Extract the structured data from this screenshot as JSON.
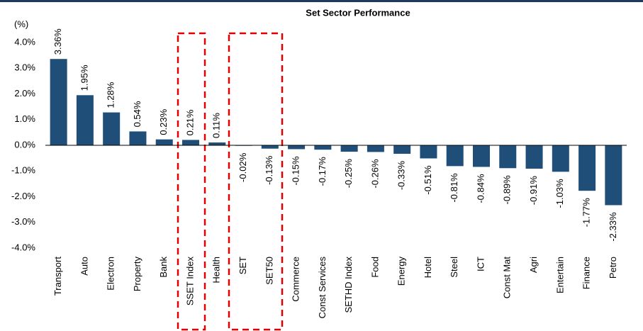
{
  "chart_data": {
    "type": "bar",
    "title": "Set Sector Performance",
    "y_label": "(%)",
    "categories": [
      "Transport",
      "Auto",
      "Electron",
      "Property",
      "Bank",
      "SSET Index",
      "Health",
      "SET",
      "SET50",
      "Commerce",
      "Const Services",
      "SETHD Index",
      "Food",
      "Energy",
      "Hotel",
      "Steel",
      "ICT",
      "Const Mat",
      "Agri",
      "Entertain",
      "Finance",
      "Petro"
    ],
    "values": [
      3.36,
      1.95,
      1.28,
      0.54,
      0.23,
      0.21,
      0.11,
      -0.02,
      -0.13,
      -0.15,
      -0.17,
      -0.25,
      -0.26,
      -0.33,
      -0.51,
      -0.81,
      -0.84,
      -0.89,
      -0.91,
      -1.03,
      -1.77,
      -2.33
    ],
    "value_labels": [
      "3.36%",
      "1.95%",
      "1.28%",
      "0.54%",
      "0.23%",
      "0.21%",
      "0.11%",
      "-0.02%",
      "-0.13%",
      "-0.15%",
      "-0.17%",
      "-0.25%",
      "-0.26%",
      "-0.33%",
      "-0.51%",
      "-0.81%",
      "-0.84%",
      "-0.89%",
      "-0.91%",
      "-1.03%",
      "-1.77%",
      "-2.33%"
    ],
    "color": "#1f4e79",
    "ylim": [
      -4,
      4
    ],
    "yticks": [
      {
        "value": -4,
        "label": "-4.0%"
      },
      {
        "value": -3,
        "label": "-3.0%"
      },
      {
        "value": -2,
        "label": "-2.0%"
      },
      {
        "value": -1,
        "label": "-1.0%"
      },
      {
        "value": 0,
        "label": "0.0%"
      },
      {
        "value": 1,
        "label": "1.0%"
      },
      {
        "value": 2,
        "label": "2.0%"
      },
      {
        "value": 3,
        "label": "3.0%"
      },
      {
        "value": 4,
        "label": "4.0%"
      }
    ],
    "grid": false
  }
}
